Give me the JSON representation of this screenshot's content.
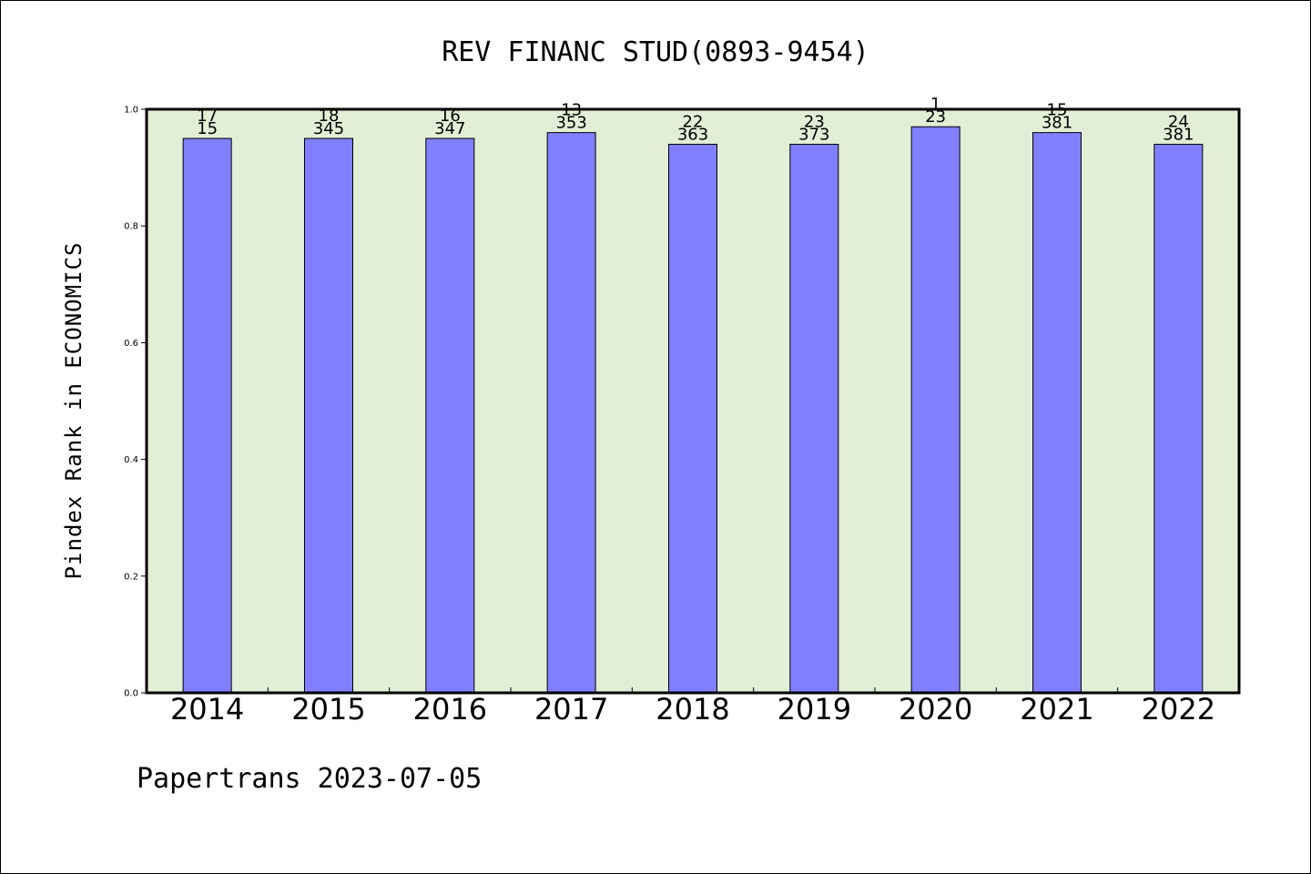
{
  "chart_data": {
    "type": "bar",
    "title": "REV FINANC STUD(0893-9454)",
    "xlabel": "",
    "ylabel": "Pindex Rank in ECONOMICS",
    "categories": [
      "2014",
      "2015",
      "2016",
      "2017",
      "2018",
      "2019",
      "2020",
      "2021",
      "2022"
    ],
    "values": [
      0.95,
      0.95,
      0.95,
      0.96,
      0.94,
      0.94,
      0.97,
      0.96,
      0.94
    ],
    "rank_labels": [
      "17",
      "18",
      "16",
      "13",
      "22",
      "23",
      "1",
      "15",
      "24"
    ],
    "total_labels": [
      "15",
      "345",
      "347",
      "353",
      "363",
      "373",
      "23",
      "381",
      "381"
    ],
    "ylim": [
      0,
      1.0
    ],
    "yticks": [
      "0.0",
      "0.2",
      "0.4",
      "0.6",
      "0.8",
      "1.0"
    ],
    "grid": false,
    "legend": "none",
    "colors": {
      "bar": "#8080ff",
      "plot_background": "#e2efd6",
      "axis": "#000000"
    }
  },
  "footer": "Papertrans 2023-07-05"
}
